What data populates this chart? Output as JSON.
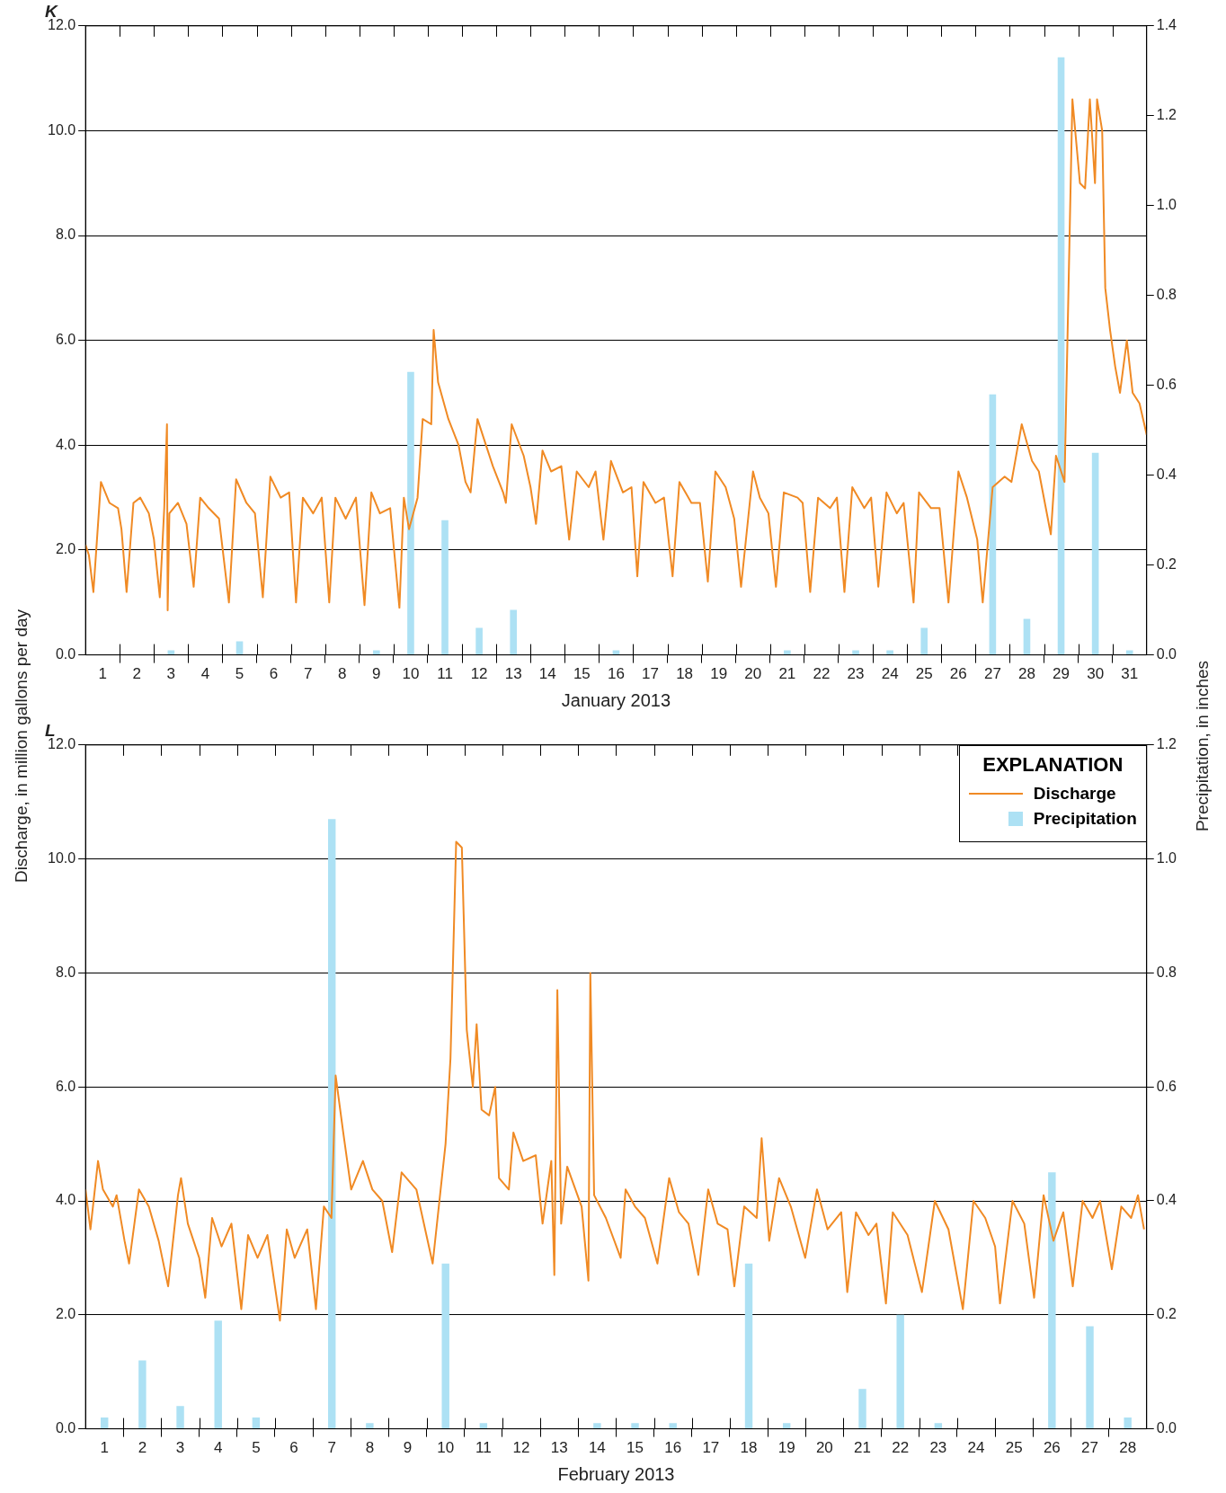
{
  "chart_data": [
    {
      "type": "line",
      "title": "K",
      "xlabel": "January 2013",
      "ylabel": "Discharge, in million gallons per day",
      "y2label": "Precipitation, in inches",
      "xlim": [
        1,
        32
      ],
      "xticks": [
        {
          "value": 1.5,
          "label": "1"
        },
        {
          "value": 2,
          "label": null
        },
        {
          "value": 2.5,
          "label": "2"
        },
        {
          "value": 3,
          "label": null
        },
        {
          "value": 3.5,
          "label": "3"
        },
        {
          "value": 4,
          "label": null
        },
        {
          "value": 4.5,
          "label": "4"
        },
        {
          "value": 5,
          "label": null
        },
        {
          "value": 5.5,
          "label": "5"
        },
        {
          "value": 6,
          "label": null
        },
        {
          "value": 6.5,
          "label": "6"
        },
        {
          "value": 7,
          "label": null
        },
        {
          "value": 7.5,
          "label": "7"
        },
        {
          "value": 8,
          "label": null
        },
        {
          "value": 8.5,
          "label": "8"
        },
        {
          "value": 9,
          "label": null
        },
        {
          "value": 9.5,
          "label": "9"
        },
        {
          "value": 10,
          "label": null
        },
        {
          "value": 10.5,
          "label": "10"
        },
        {
          "value": 11,
          "label": null
        },
        {
          "value": 11.5,
          "label": "11"
        },
        {
          "value": 12,
          "label": null
        },
        {
          "value": 12.5,
          "label": "12"
        },
        {
          "value": 13,
          "label": null
        },
        {
          "value": 13.5,
          "label": "13"
        },
        {
          "value": 14,
          "label": null
        },
        {
          "value": 14.5,
          "label": "14"
        },
        {
          "value": 15,
          "label": null
        },
        {
          "value": 15.5,
          "label": "15"
        },
        {
          "value": 16,
          "label": null
        },
        {
          "value": 16.5,
          "label": "16"
        },
        {
          "value": 17,
          "label": null
        },
        {
          "value": 17.5,
          "label": "17"
        },
        {
          "value": 18,
          "label": null
        },
        {
          "value": 18.5,
          "label": "18"
        },
        {
          "value": 19,
          "label": null
        },
        {
          "value": 19.5,
          "label": "19"
        },
        {
          "value": 20,
          "label": null
        },
        {
          "value": 20.5,
          "label": "20"
        },
        {
          "value": 21,
          "label": null
        },
        {
          "value": 21.5,
          "label": "21"
        },
        {
          "value": 22,
          "label": null
        },
        {
          "value": 22.5,
          "label": "22"
        },
        {
          "value": 23,
          "label": null
        },
        {
          "value": 23.5,
          "label": "23"
        },
        {
          "value": 24,
          "label": null
        },
        {
          "value": 24.5,
          "label": "24"
        },
        {
          "value": 25,
          "label": null
        },
        {
          "value": 25.5,
          "label": "25"
        },
        {
          "value": 26,
          "label": null
        },
        {
          "value": 26.5,
          "label": "26"
        },
        {
          "value": 27,
          "label": null
        },
        {
          "value": 27.5,
          "label": "27"
        },
        {
          "value": 28,
          "label": null
        },
        {
          "value": 28.5,
          "label": "28"
        },
        {
          "value": 29,
          "label": null
        },
        {
          "value": 29.5,
          "label": "29"
        },
        {
          "value": 30,
          "label": null
        },
        {
          "value": 30.5,
          "label": "30"
        },
        {
          "value": 31,
          "label": null
        },
        {
          "value": 31.5,
          "label": "31"
        }
      ],
      "ylim": [
        0,
        12
      ],
      "yticks": [
        {
          "value": 0,
          "label": "0.0"
        },
        {
          "value": 2,
          "label": "2.0"
        },
        {
          "value": 4,
          "label": "4.0"
        },
        {
          "value": 6,
          "label": "6.0"
        },
        {
          "value": 8,
          "label": "8.0"
        },
        {
          "value": 10,
          "label": "10.0"
        },
        {
          "value": 12,
          "label": "12.0"
        }
      ],
      "y2lim": [
        0,
        1.4
      ],
      "y2ticks": [
        {
          "value": 0,
          "label": "0.0"
        },
        {
          "value": 0.2,
          "label": "0.2"
        },
        {
          "value": 0.4,
          "label": "0.4"
        },
        {
          "value": 0.6,
          "label": "0.6"
        },
        {
          "value": 0.8,
          "label": "0.8"
        },
        {
          "value": 1,
          "label": "1.0"
        },
        {
          "value": 1.2,
          "label": "1.2"
        },
        {
          "value": 1.4,
          "label": "1.4"
        }
      ],
      "grid": "y",
      "legend": false,
      "series": [
        {
          "color": "#f08a24",
          "x": [
            1.0,
            1.1,
            1.23,
            1.45,
            1.7,
            1.95,
            2.05,
            2.2,
            2.4,
            2.6,
            2.85,
            3.0,
            3.17,
            3.3,
            3.38,
            3.4,
            3.45,
            3.7,
            3.95,
            4.16,
            4.35,
            4.6,
            4.9,
            5.19,
            5.4,
            5.7,
            5.95,
            6.18,
            6.4,
            6.7,
            6.95,
            7.15,
            7.35,
            7.65,
            7.9,
            8.12,
            8.3,
            8.6,
            8.9,
            9.15,
            9.35,
            9.6,
            9.9,
            10.17,
            10.3,
            10.45,
            10.7,
            10.85,
            11.1,
            11.17,
            11.3,
            11.6,
            11.9,
            12.1,
            12.25,
            12.45,
            12.7,
            12.9,
            13.2,
            13.28,
            13.45,
            13.8,
            14.0,
            14.16,
            14.35,
            14.6,
            14.9,
            15.13,
            15.35,
            15.7,
            15.9,
            16.13,
            16.35,
            16.7,
            16.95,
            17.12,
            17.3,
            17.65,
            17.9,
            18.15,
            18.35,
            18.7,
            18.95,
            19.18,
            19.4,
            19.7,
            19.95,
            20.15,
            20.5,
            20.7,
            20.95,
            21.17,
            21.4,
            21.8,
            21.95,
            22.17,
            22.4,
            22.75,
            22.95,
            23.17,
            23.4,
            23.75,
            23.95,
            24.16,
            24.4,
            24.7,
            24.9,
            25.19,
            25.35,
            25.7,
            25.95,
            26.21,
            26.5,
            26.75,
            27.05,
            27.21,
            27.5,
            27.85,
            28.05,
            28.35,
            28.65,
            28.85,
            29.2,
            29.35,
            29.6,
            29.83,
            30.05,
            30.2,
            30.34,
            30.49,
            30.55,
            30.7,
            30.79,
            30.93,
            31.08,
            31.22,
            31.42,
            31.59,
            31.79,
            32.0
          ],
          "values": [
            2.1,
            1.9,
            1.2,
            3.3,
            2.9,
            2.8,
            2.4,
            1.2,
            2.9,
            3.0,
            2.7,
            2.2,
            1.1,
            2.8,
            4.4,
            0.85,
            2.7,
            2.9,
            2.5,
            1.3,
            3.0,
            2.8,
            2.6,
            1.0,
            3.35,
            2.9,
            2.7,
            1.1,
            3.4,
            3.0,
            3.1,
            1.0,
            3.0,
            2.7,
            3.0,
            1.0,
            3.0,
            2.6,
            3.0,
            0.95,
            3.1,
            2.7,
            2.8,
            0.9,
            3.0,
            2.4,
            3.0,
            4.5,
            4.4,
            6.2,
            5.2,
            4.5,
            4.0,
            3.3,
            3.1,
            4.5,
            4.0,
            3.6,
            3.1,
            2.9,
            4.4,
            3.8,
            3.2,
            2.5,
            3.9,
            3.5,
            3.6,
            2.2,
            3.5,
            3.2,
            3.5,
            2.2,
            3.7,
            3.1,
            3.2,
            1.5,
            3.3,
            2.9,
            3.0,
            1.5,
            3.3,
            2.9,
            2.9,
            1.4,
            3.5,
            3.2,
            2.6,
            1.3,
            3.5,
            3.0,
            2.7,
            1.3,
            3.1,
            3.0,
            2.9,
            1.2,
            3.0,
            2.8,
            3.0,
            1.2,
            3.2,
            2.8,
            3.0,
            1.3,
            3.1,
            2.7,
            2.9,
            1.0,
            3.1,
            2.8,
            2.8,
            1.0,
            3.5,
            3.0,
            2.2,
            1.0,
            3.2,
            3.4,
            3.3,
            4.4,
            3.7,
            3.5,
            2.3,
            3.8,
            3.3,
            10.6,
            9.0,
            8.9,
            10.6,
            9.0,
            10.6,
            10.0,
            7.0,
            6.2,
            5.5,
            5.0,
            6.0,
            5.0,
            4.8,
            4.2
          ]
        },
        {
          "type": "bar",
          "axis": "y2",
          "color": "#ade1f4",
          "x": [
            3.5,
            5.5,
            9.5,
            10.5,
            11.5,
            12.5,
            13.5,
            16.5,
            21.5,
            23.5,
            24.5,
            25.5,
            27.5,
            28.5,
            29.5,
            30.5,
            31.5
          ],
          "values": [
            0.01,
            0.03,
            0.01,
            0.63,
            0.3,
            0.06,
            0.1,
            0.01,
            0.01,
            0.01,
            0.01,
            0.06,
            0.58,
            0.08,
            1.33,
            0.45,
            0.01
          ]
        }
      ]
    },
    {
      "type": "line",
      "title": "L",
      "xlabel": "February 2013",
      "xlim": [
        1,
        29
      ],
      "xticks": [
        {
          "value": 1.5,
          "label": "1"
        },
        {
          "value": 2,
          "label": null
        },
        {
          "value": 2.5,
          "label": "2"
        },
        {
          "value": 3,
          "label": null
        },
        {
          "value": 3.5,
          "label": "3"
        },
        {
          "value": 4,
          "label": null
        },
        {
          "value": 4.5,
          "label": "4"
        },
        {
          "value": 5,
          "label": null
        },
        {
          "value": 5.5,
          "label": "5"
        },
        {
          "value": 6,
          "label": null
        },
        {
          "value": 6.5,
          "label": "6"
        },
        {
          "value": 7,
          "label": null
        },
        {
          "value": 7.5,
          "label": "7"
        },
        {
          "value": 8,
          "label": null
        },
        {
          "value": 8.5,
          "label": "8"
        },
        {
          "value": 9,
          "label": null
        },
        {
          "value": 9.5,
          "label": "9"
        },
        {
          "value": 10,
          "label": null
        },
        {
          "value": 10.5,
          "label": "10"
        },
        {
          "value": 11,
          "label": null
        },
        {
          "value": 11.5,
          "label": "11"
        },
        {
          "value": 12,
          "label": null
        },
        {
          "value": 12.5,
          "label": "12"
        },
        {
          "value": 13,
          "label": null
        },
        {
          "value": 13.5,
          "label": "13"
        },
        {
          "value": 14,
          "label": null
        },
        {
          "value": 14.5,
          "label": "14"
        },
        {
          "value": 15,
          "label": null
        },
        {
          "value": 15.5,
          "label": "15"
        },
        {
          "value": 16,
          "label": null
        },
        {
          "value": 16.5,
          "label": "16"
        },
        {
          "value": 17,
          "label": null
        },
        {
          "value": 17.5,
          "label": "17"
        },
        {
          "value": 18,
          "label": null
        },
        {
          "value": 18.5,
          "label": "18"
        },
        {
          "value": 19,
          "label": null
        },
        {
          "value": 19.5,
          "label": "19"
        },
        {
          "value": 20,
          "label": null
        },
        {
          "value": 20.5,
          "label": "20"
        },
        {
          "value": 21,
          "label": null
        },
        {
          "value": 21.5,
          "label": "21"
        },
        {
          "value": 22,
          "label": null
        },
        {
          "value": 22.5,
          "label": "22"
        },
        {
          "value": 23,
          "label": null
        },
        {
          "value": 23.5,
          "label": "23"
        },
        {
          "value": 24,
          "label": null
        },
        {
          "value": 24.5,
          "label": "24"
        },
        {
          "value": 25,
          "label": null
        },
        {
          "value": 25.5,
          "label": "25"
        },
        {
          "value": 26,
          "label": null
        },
        {
          "value": 26.5,
          "label": "26"
        },
        {
          "value": 27,
          "label": null
        },
        {
          "value": 27.5,
          "label": "27"
        },
        {
          "value": 28,
          "label": null
        },
        {
          "value": 28.5,
          "label": "28"
        }
      ],
      "ylim": [
        0,
        12
      ],
      "yticks": [
        {
          "value": 0,
          "label": "0.0"
        },
        {
          "value": 2,
          "label": "2.0"
        },
        {
          "value": 4,
          "label": "4.0"
        },
        {
          "value": 6,
          "label": "6.0"
        },
        {
          "value": 8,
          "label": "8.0"
        },
        {
          "value": 10,
          "label": "10.0"
        },
        {
          "value": 12,
          "label": "12.0"
        }
      ],
      "y2lim": [
        0,
        1.2
      ],
      "y2ticks": [
        {
          "value": 0,
          "label": "0.0"
        },
        {
          "value": 0.2,
          "label": "0.2"
        },
        {
          "value": 0.4,
          "label": "0.4"
        },
        {
          "value": 0.6,
          "label": "0.6"
        },
        {
          "value": 0.8,
          "label": "0.8"
        },
        {
          "value": 1,
          "label": "1.0"
        },
        {
          "value": 1.2,
          "label": "1.2"
        }
      ],
      "grid": "y",
      "legend": "top right",
      "legend_title": "EXPLANATION",
      "series": [
        {
          "name": "Discharge",
          "color": "#f08a24",
          "x": [
            1.0,
            1.13,
            1.33,
            1.46,
            1.72,
            1.82,
            2.03,
            2.15,
            2.41,
            2.67,
            2.93,
            3.18,
            3.44,
            3.52,
            3.7,
            4.0,
            4.16,
            4.34,
            4.59,
            4.85,
            5.11,
            5.29,
            5.54,
            5.8,
            6.13,
            6.31,
            6.52,
            6.85,
            7.08,
            7.29,
            7.49,
            7.6,
            7.8,
            8.01,
            8.32,
            8.57,
            8.83,
            9.09,
            9.34,
            9.73,
            10.16,
            10.5,
            10.63,
            10.78,
            10.93,
            11.06,
            11.22,
            11.32,
            11.45,
            11.65,
            11.81,
            11.91,
            12.17,
            12.29,
            12.55,
            12.88,
            13.06,
            13.29,
            13.37,
            13.45,
            13.55,
            13.71,
            14.09,
            14.27,
            14.32,
            14.42,
            14.73,
            15.12,
            15.25,
            15.5,
            15.76,
            16.09,
            16.4,
            16.66,
            16.91,
            17.17,
            17.43,
            17.68,
            17.94,
            18.12,
            18.38,
            18.71,
            18.84,
            19.04,
            19.3,
            19.61,
            19.99,
            20.3,
            20.58,
            20.94,
            21.1,
            21.33,
            21.66,
            21.87,
            22.12,
            22.3,
            22.69,
            23.07,
            23.41,
            23.77,
            24.15,
            24.43,
            24.74,
            25.0,
            25.13,
            25.46,
            25.77,
            26.03,
            26.28,
            26.54,
            26.8,
            27.05,
            27.31,
            27.57,
            27.77,
            28.08,
            28.33,
            28.59,
            28.77,
            28.93
          ],
          "values": [
            4.2,
            3.5,
            4.7,
            4.2,
            3.9,
            4.1,
            3.3,
            2.9,
            4.2,
            3.9,
            3.3,
            2.5,
            4.1,
            4.4,
            3.6,
            3.0,
            2.3,
            3.7,
            3.2,
            3.6,
            2.1,
            3.4,
            3.0,
            3.4,
            1.9,
            3.5,
            3.0,
            3.5,
            2.1,
            3.9,
            3.7,
            6.2,
            5.2,
            4.2,
            4.7,
            4.2,
            4.0,
            3.1,
            4.5,
            4.2,
            2.9,
            5.0,
            6.5,
            10.3,
            10.2,
            7.0,
            6.0,
            7.1,
            5.6,
            5.5,
            6.0,
            4.4,
            4.2,
            5.2,
            4.7,
            4.8,
            3.6,
            4.7,
            2.7,
            7.7,
            3.6,
            4.6,
            3.9,
            2.6,
            8.0,
            4.1,
            3.7,
            3.0,
            4.2,
            3.9,
            3.7,
            2.9,
            4.4,
            3.8,
            3.6,
            2.7,
            4.2,
            3.6,
            3.5,
            2.5,
            3.9,
            3.7,
            5.1,
            3.3,
            4.4,
            3.9,
            3.0,
            4.2,
            3.5,
            3.8,
            2.4,
            3.8,
            3.4,
            3.6,
            2.2,
            3.8,
            3.4,
            2.4,
            4.0,
            3.5,
            2.1,
            4.0,
            3.7,
            3.2,
            2.2,
            4.0,
            3.6,
            2.3,
            4.1,
            3.3,
            3.8,
            2.5,
            4.0,
            3.7,
            4.0,
            2.8,
            3.9,
            3.7,
            4.1,
            3.5
          ]
        },
        {
          "name": "Precipitation",
          "type": "bar",
          "axis": "y2",
          "color": "#ade1f4",
          "x": [
            1.5,
            2.5,
            3.5,
            4.5,
            5.5,
            7.5,
            8.5,
            10.5,
            11.5,
            14.5,
            15.5,
            16.5,
            18.5,
            19.5,
            21.5,
            22.5,
            23.5,
            26.5,
            27.5,
            28.5
          ],
          "values": [
            0.02,
            0.12,
            0.04,
            0.19,
            0.02,
            1.07,
            0.01,
            0.29,
            0.01,
            0.01,
            0.01,
            0.01,
            0.29,
            0.01,
            0.07,
            0.2,
            0.01,
            0.45,
            0.18,
            0.02
          ]
        }
      ]
    }
  ]
}
